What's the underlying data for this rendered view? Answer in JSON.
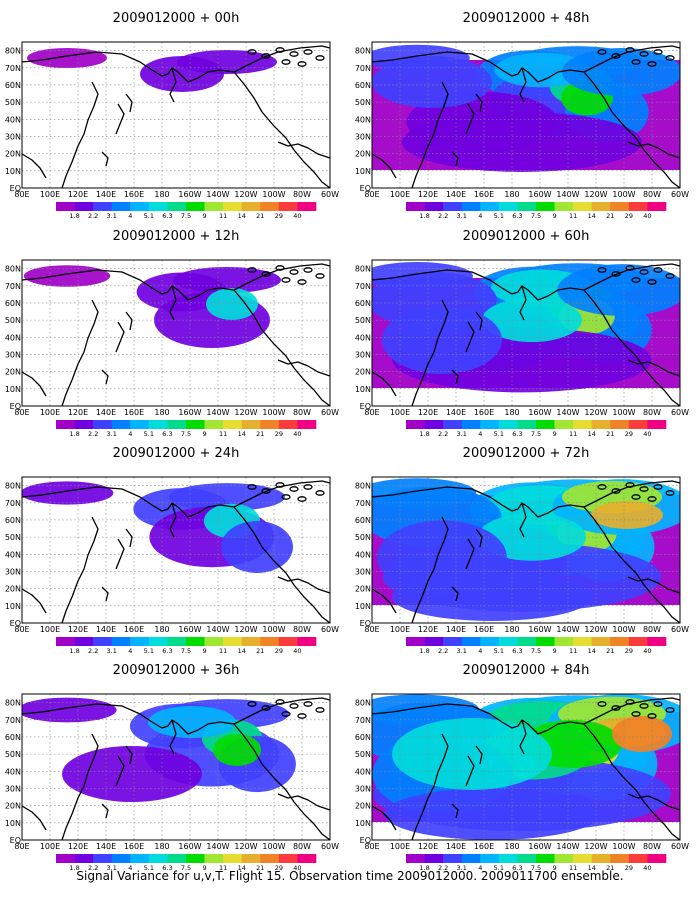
{
  "caption": "Signal Variance for u,v,T. Flight 15. Observation time 2009012000. 2009011700 ensemble.",
  "panels": [
    {
      "title": "2009012000 + 00h",
      "level": 0
    },
    {
      "title": "2009012000 + 12h",
      "level": 1
    },
    {
      "title": "2009012000 + 24h",
      "level": 2
    },
    {
      "title": "2009012000 + 36h",
      "level": 3
    },
    {
      "title": "2009012000 + 48h",
      "level": 4
    },
    {
      "title": "2009012000 + 60h",
      "level": 5
    },
    {
      "title": "2009012000 + 72h",
      "level": 6
    },
    {
      "title": "2009012000 + 84h",
      "level": 7
    }
  ],
  "map": {
    "x_ticks": [
      "80E",
      "100E",
      "120E",
      "140E",
      "160E",
      "180",
      "160W",
      "140W",
      "120W",
      "100W",
      "80W",
      "60W"
    ],
    "y_ticks": [
      "EQ",
      "10N",
      "20N",
      "30N",
      "40N",
      "50N",
      "60N",
      "70N",
      "80N"
    ]
  },
  "colorbar": {
    "labels": [
      "1.8",
      "2.2",
      "3.1",
      "4",
      "5.1",
      "6.3",
      "7.5",
      "9",
      "11",
      "14",
      "21",
      "29",
      "40"
    ],
    "colors": [
      "#a000c8",
      "#7000e0",
      "#4040ff",
      "#0080ff",
      "#00b4ff",
      "#00dcdc",
      "#00dc8c",
      "#00dc00",
      "#a0e632",
      "#e6dc32",
      "#e6af2d",
      "#f08228",
      "#fa3c3c",
      "#f00082"
    ]
  }
}
